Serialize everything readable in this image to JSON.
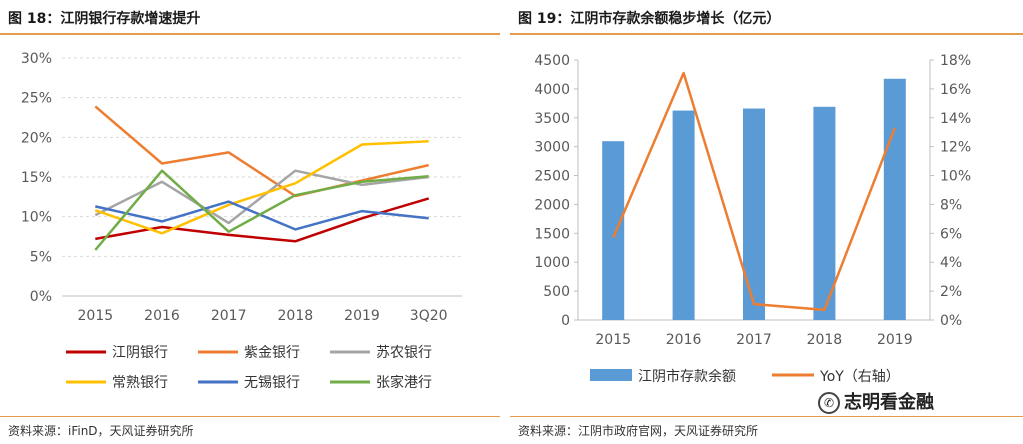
{
  "left": {
    "title": "图 18：江阴银行存款增速提升",
    "source": "资料来源：iFinD，天风证券研究所"
  },
  "right": {
    "title": "图 19：江阴市存款余额稳步增长（亿元）",
    "source": "资料来源：江阴市政府官网，天风证券研究所"
  },
  "watermark": {
    "text": "志明看金融",
    "icon": "wechat-icon"
  },
  "colors": {
    "rule": "#e39b4c",
    "grid": "#d9d9d9",
    "axis": "#bfbfbf",
    "bar": "#5b9bd5",
    "yoy": "#ed7d31"
  },
  "chart_data": [
    {
      "type": "line",
      "title": "",
      "categories": [
        "2015",
        "2016",
        "2017",
        "2018",
        "2019",
        "3Q20"
      ],
      "ylim": [
        0,
        30
      ],
      "yticks": [
        "0%",
        "5%",
        "10%",
        "15%",
        "20%",
        "25%",
        "30%"
      ],
      "grid": true,
      "legend_position": "bottom",
      "series": [
        {
          "name": "江阴银行",
          "color": "#c00000",
          "values": [
            7.2,
            8.7,
            7.7,
            6.9,
            9.8,
            12.3
          ]
        },
        {
          "name": "紫金银行",
          "color": "#ed7d31",
          "values": [
            23.9,
            16.7,
            18.1,
            12.6,
            null,
            16.5
          ]
        },
        {
          "name": "苏农银行",
          "color": "#a5a5a5",
          "values": [
            10.2,
            14.4,
            9.2,
            15.8,
            14.0,
            15.0
          ]
        },
        {
          "name": "常熟银行",
          "color": "#ffc000",
          "values": [
            10.8,
            7.9,
            11.5,
            14.2,
            19.1,
            19.5
          ]
        },
        {
          "name": "无锡银行",
          "color": "#4472c4",
          "values": [
            11.3,
            9.4,
            11.9,
            8.4,
            10.7,
            9.8
          ]
        },
        {
          "name": "张家港行",
          "color": "#70ad47",
          "values": [
            5.8,
            15.8,
            8.1,
            12.7,
            14.4,
            15.1
          ]
        }
      ]
    },
    {
      "type": "bar",
      "title": "",
      "categories": [
        "2015",
        "2016",
        "2017",
        "2018",
        "2019"
      ],
      "ylim": [
        0,
        4500
      ],
      "y2lim": [
        0,
        18
      ],
      "yticks": [
        "0",
        "500",
        "1000",
        "1500",
        "2000",
        "2500",
        "3000",
        "3500",
        "4000",
        "4500"
      ],
      "y2ticks": [
        "0%",
        "2%",
        "4%",
        "6%",
        "8%",
        "10%",
        "12%",
        "14%",
        "16%",
        "18%"
      ],
      "grid": true,
      "legend_position": "bottom",
      "series": [
        {
          "name": "江阴市存款余额",
          "type": "bar",
          "axis": "left",
          "values": [
            3095,
            3625,
            3660,
            3690,
            4175
          ]
        },
        {
          "name": "YoY（右轴）",
          "type": "line",
          "axis": "right",
          "values": [
            5.7,
            17.1,
            1.1,
            0.7,
            13.3
          ]
        }
      ]
    }
  ]
}
